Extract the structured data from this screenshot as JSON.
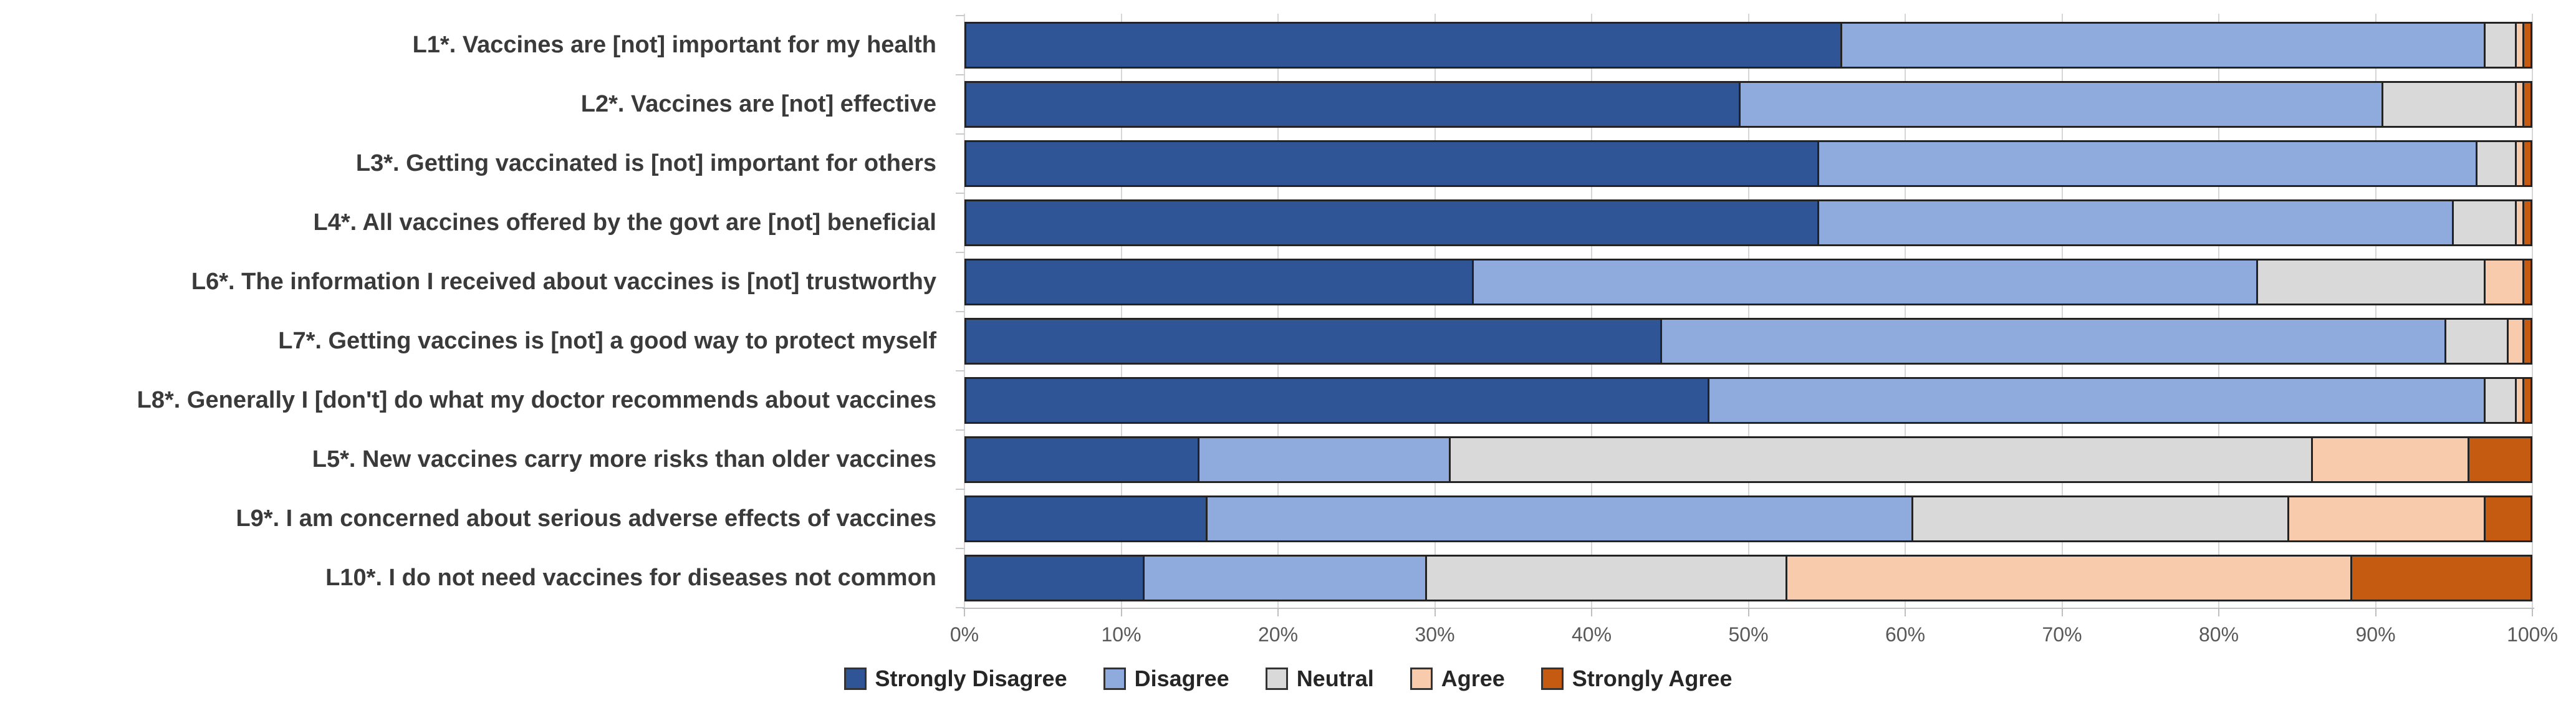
{
  "chart_data": {
    "type": "bar",
    "stacked": true,
    "orientation": "horizontal",
    "unit": "percent",
    "title": "",
    "xlabel": "",
    "ylabel": "",
    "xlim": [
      0,
      100
    ],
    "grid": true,
    "legend_position": "bottom",
    "categories": [
      "L1*. Vaccines are [not] important for my health",
      "L2*. Vaccines are [not] effective",
      "L3*. Getting vaccinated is [not] important for others",
      "L4*. All vaccines offered by the govt are [not] beneficial",
      "L6*. The information I received about vaccines is [not] trustworthy",
      "L7*. Getting vaccines is [not] a good way to protect myself",
      "L8*. Generally I [don't] do what my doctor recommends about vaccines",
      "L5*. New vaccines carry more risks than older vaccines",
      "L9*. I am concerned about serious adverse effects of vaccines",
      "L10*. I do not need vaccines for diseases not common"
    ],
    "series": [
      {
        "name": "Strongly Disagree",
        "color": "#2F5597",
        "values": [
          56,
          49.5,
          54.5,
          54.5,
          32.5,
          44.5,
          47.5,
          15,
          15.5,
          11.5
        ]
      },
      {
        "name": "Disagree",
        "color": "#8FAADC",
        "values": [
          41,
          41,
          42,
          40.5,
          50,
          50,
          49.5,
          16,
          45,
          18
        ]
      },
      {
        "name": "Neutral",
        "color": "#D9D9D9",
        "values": [
          2,
          8.5,
          2.5,
          4,
          14.5,
          4,
          2,
          55,
          24,
          23
        ]
      },
      {
        "name": "Agree",
        "color": "#F8CBAD",
        "values": [
          0.5,
          0.5,
          0.5,
          0.5,
          2.5,
          1,
          0.5,
          10,
          12.5,
          36
        ]
      },
      {
        "name": "Strongly Agree",
        "color": "#C55A11",
        "values": [
          0.5,
          0.5,
          0.5,
          0.5,
          0.5,
          0.5,
          0.5,
          4,
          3,
          11.5
        ]
      }
    ],
    "x_ticks": [
      "0%",
      "10%",
      "20%",
      "30%",
      "40%",
      "50%",
      "60%",
      "70%",
      "80%",
      "90%",
      "100%"
    ]
  }
}
